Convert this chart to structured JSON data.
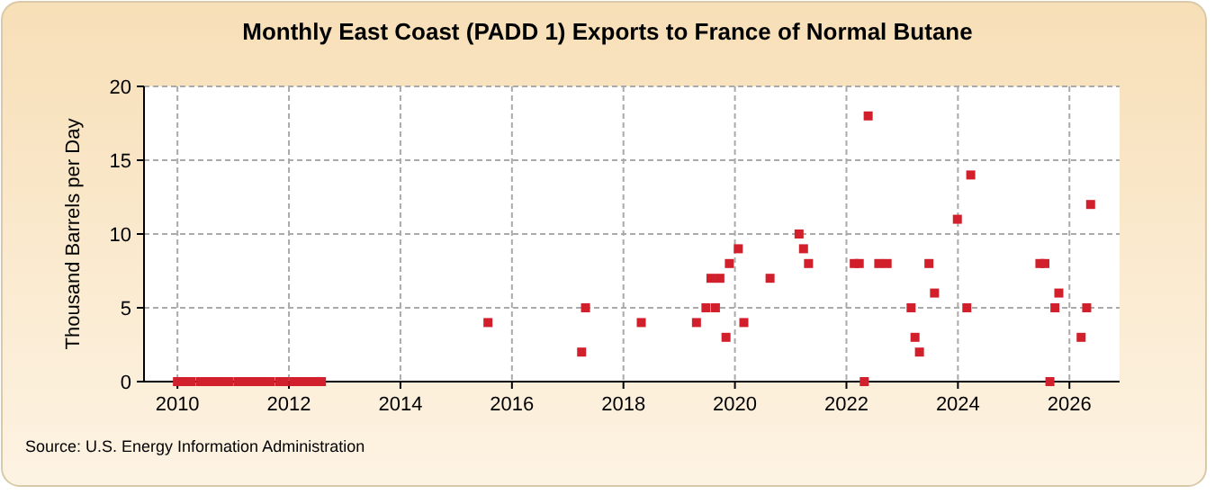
{
  "chart_data": {
    "type": "scatter",
    "title": "Monthly East Coast (PADD 1) Exports to France of Normal Butane",
    "ylabel": "Thousand Barrels per Day",
    "annotations": [
      "Source: U.S. Energy Information Administration"
    ],
    "x": [
      2010.0,
      2010.083,
      2010.167,
      2010.25,
      2010.417,
      2010.5,
      2010.583,
      2010.667,
      2010.75,
      2010.833,
      2010.917,
      2011.083,
      2011.167,
      2011.25,
      2011.333,
      2011.417,
      2011.5,
      2011.583,
      2011.667,
      2011.833,
      2011.917,
      2012.083,
      2012.167,
      2012.25,
      2012.333,
      2012.417,
      2012.5,
      2012.583,
      2015.57,
      2017.25,
      2017.32,
      2018.32,
      2019.31,
      2019.48,
      2019.57,
      2019.65,
      2019.73,
      2019.84,
      2019.9,
      2020.06,
      2020.16,
      2020.63,
      2021.15,
      2021.23,
      2021.32,
      2022.14,
      2022.23,
      2022.32,
      2022.39,
      2022.58,
      2022.73,
      2023.16,
      2023.23,
      2023.31,
      2023.48,
      2023.58,
      2023.99,
      2024.16,
      2024.23,
      2025.47,
      2025.56,
      2025.65,
      2025.74,
      2025.81,
      2026.21,
      2026.31,
      2026.38
    ],
    "values": [
      0,
      0,
      0,
      0,
      0,
      0,
      0,
      0,
      0,
      0,
      0,
      0,
      0,
      0,
      0,
      0,
      0,
      0,
      0,
      0,
      0,
      0,
      0,
      0,
      0,
      0,
      0,
      0,
      4,
      2,
      5,
      4,
      4,
      5,
      7,
      5,
      7,
      3,
      8,
      9,
      4,
      7,
      10,
      9,
      8,
      8,
      8,
      0,
      18,
      8,
      8,
      5,
      3,
      2,
      8,
      6,
      11,
      5,
      14,
      8,
      8,
      0,
      5,
      6,
      3,
      5,
      12
    ],
    "color": "#d21f2c",
    "marker": "square",
    "grid": true,
    "xlim": [
      2009.4,
      2026.9
    ],
    "xticks": [
      2010,
      2012,
      2014,
      2016,
      2018,
      2020,
      2022,
      2024,
      2026
    ],
    "ylim": [
      0,
      20
    ],
    "yticks": [
      0,
      5,
      10,
      15,
      20
    ]
  }
}
